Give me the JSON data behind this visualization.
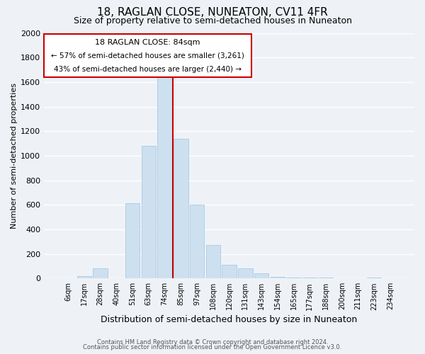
{
  "title": "18, RAGLAN CLOSE, NUNEATON, CV11 4FR",
  "subtitle": "Size of property relative to semi-detached houses in Nuneaton",
  "xlabel": "Distribution of semi-detached houses by size in Nuneaton",
  "ylabel": "Number of semi-detached properties",
  "footer1": "Contains HM Land Registry data © Crown copyright and database right 2024.",
  "footer2": "Contains public sector information licensed under the Open Government Licence v3.0.",
  "bar_labels": [
    "6sqm",
    "17sqm",
    "28sqm",
    "40sqm",
    "51sqm",
    "63sqm",
    "74sqm",
    "85sqm",
    "97sqm",
    "108sqm",
    "120sqm",
    "131sqm",
    "143sqm",
    "154sqm",
    "165sqm",
    "177sqm",
    "188sqm",
    "200sqm",
    "211sqm",
    "223sqm",
    "234sqm"
  ],
  "bar_values": [
    0,
    20,
    80,
    0,
    615,
    1080,
    1645,
    1140,
    600,
    270,
    110,
    85,
    40,
    15,
    5,
    5,
    5,
    0,
    0,
    5,
    0
  ],
  "bar_color": "#cde0f0",
  "bar_edge_color": "#a0c4de",
  "property_bar_index": 7,
  "vline_color": "#cc0000",
  "annotation_text1": "18 RAGLAN CLOSE: 84sqm",
  "annotation_text2": "← 57% of semi-detached houses are smaller (3,261)",
  "annotation_text3": "43% of semi-detached houses are larger (2,440) →",
  "annotation_box_facecolor": "#ffffff",
  "annotation_border_color": "#cc0000",
  "ylim": [
    0,
    2000
  ],
  "yticks": [
    0,
    200,
    400,
    600,
    800,
    1000,
    1200,
    1400,
    1600,
    1800,
    2000
  ],
  "bg_color": "#eef2f7",
  "grid_color": "#ffffff",
  "title_fontsize": 11,
  "subtitle_fontsize": 9
}
